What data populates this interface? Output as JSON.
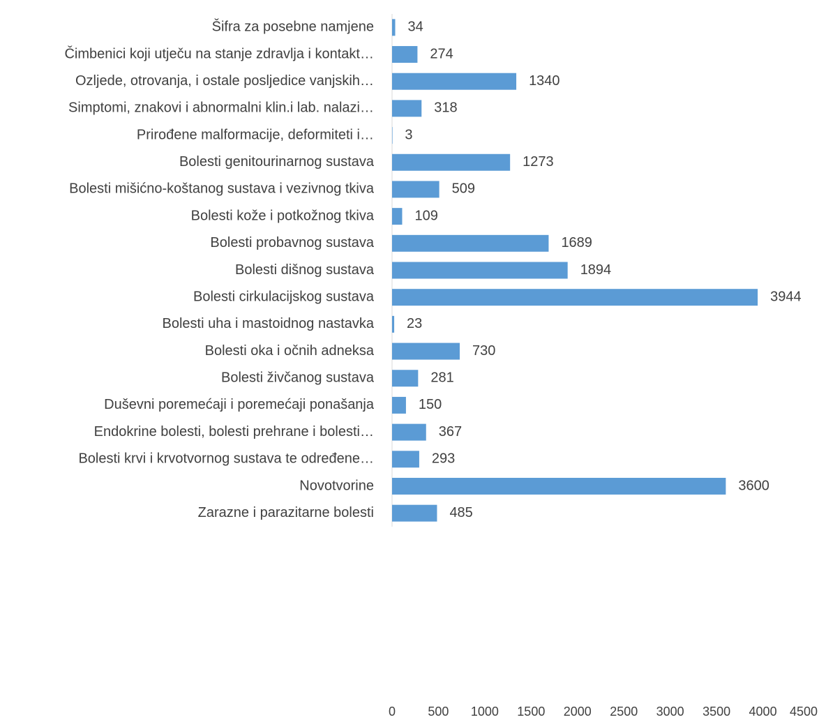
{
  "chart_data": {
    "type": "bar",
    "orientation": "horizontal",
    "title": "",
    "xlabel": "",
    "ylabel": "",
    "xlim": [
      0,
      4500
    ],
    "x_ticks": [
      0,
      500,
      1000,
      1500,
      2000,
      2500,
      3000,
      3500,
      4000,
      4500
    ],
    "grid": false,
    "bar_color": "#5b9bd5",
    "categories": [
      "Šifra za posebne namjene",
      "Čimbenici koji utječu na stanje zdravlja i kontakt…",
      "Ozljede, otrovanja, i ostale posljedice vanjskih…",
      "Simptomi, znakovi i abnormalni klin.i lab. nalazi…",
      "Prirođene malformacije, deformiteti i…",
      "Bolesti genitourinarnog sustava",
      "Bolesti mišićno-koštanog sustava i vezivnog tkiva",
      "Bolesti kože i potkožnog tkiva",
      "Bolesti probavnog sustava",
      "Bolesti dišnog sustava",
      "Bolesti cirkulacijskog sustava",
      "Bolesti uha i mastoidnog nastavka",
      "Bolesti oka i očnih adneksa",
      "Bolesti živčanog sustava",
      "Duševni poremećaji i poremećaji ponašanja",
      "Endokrine bolesti, bolesti prehrane i bolesti…",
      "Bolesti krvi i krvotvornog sustava te određene…",
      "Novotvorine",
      "Zarazne i parazitarne bolesti"
    ],
    "values": [
      34,
      274,
      1340,
      318,
      3,
      1273,
      509,
      109,
      1689,
      1894,
      3944,
      23,
      730,
      281,
      150,
      367,
      293,
      3600,
      485
    ]
  }
}
